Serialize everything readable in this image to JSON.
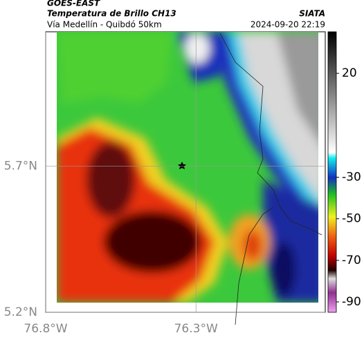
{
  "header": {
    "title": "GOES-EAST",
    "subtitle": "Temperatura de Brillo CH13",
    "route": "Vía Medellín - Quibdó 50km",
    "source": "SIATA",
    "timestamp": "2024-09-20 22:19"
  },
  "map": {
    "xlim": [
      -76.8,
      -75.87
    ],
    "ylim": [
      5.2,
      6.16
    ],
    "xticks": [
      {
        "value": -76.8,
        "label": "76.8°W"
      },
      {
        "value": -76.3,
        "label": "76.3°W"
      }
    ],
    "yticks": [
      {
        "value": 5.7,
        "label": "5.7°N"
      },
      {
        "value": 5.2,
        "label": "5.2°N"
      }
    ],
    "grid": true,
    "colorbar": {
      "lim": [
        -95,
        40
      ],
      "ticks": [
        20,
        -30,
        -50,
        -70,
        -90
      ]
    }
  }
}
